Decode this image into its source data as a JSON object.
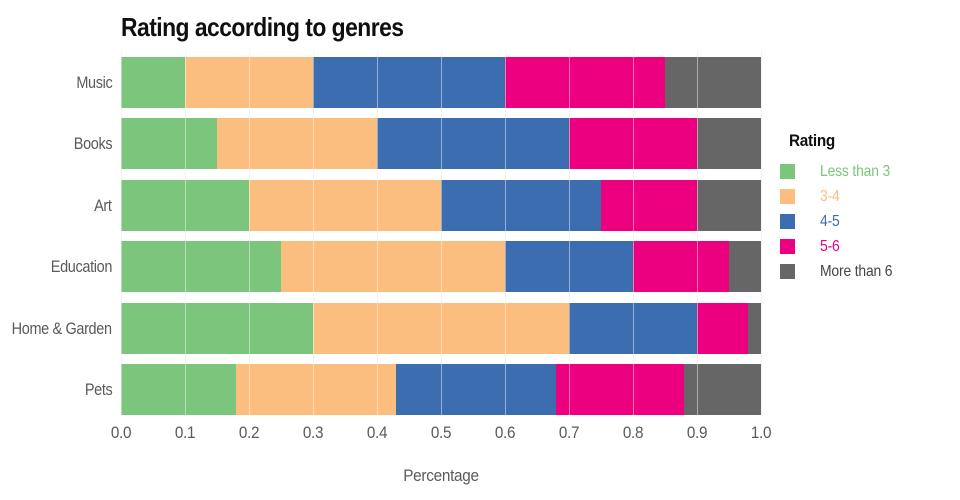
{
  "title": "Rating according to genres",
  "xlabel": "Percentage",
  "legend": {
    "title": "Rating",
    "items": [
      {
        "label": "Less than 3",
        "color": "#7cc57d",
        "label_color": "#7cc57d"
      },
      {
        "label": "3-4",
        "color": "#fcbe7e",
        "label_color": "#fcbe7e"
      },
      {
        "label": "4-5",
        "color": "#3c6db0",
        "label_color": "#3c6db0"
      },
      {
        "label": "5-6",
        "color": "#ec0080",
        "label_color": "#ec0080"
      },
      {
        "label": "More than 6",
        "color": "#666666",
        "label_color": "#454545"
      }
    ]
  },
  "chart_data": {
    "type": "bar",
    "orientation": "horizontal",
    "stacked": true,
    "title": "Rating according to genres",
    "xlabel": "Percentage",
    "ylabel": "",
    "xlim": [
      0,
      1
    ],
    "grid": true,
    "legend_position": "right",
    "categories": [
      "Music",
      "Books",
      "Art",
      "Education",
      "Home & Garden",
      "Pets"
    ],
    "series": [
      {
        "name": "Less than 3",
        "color": "#7cc57d",
        "values": [
          0.1,
          0.15,
          0.2,
          0.25,
          0.3,
          0.18
        ]
      },
      {
        "name": "3-4",
        "color": "#fcbe7e",
        "values": [
          0.2,
          0.25,
          0.3,
          0.35,
          0.4,
          0.25
        ]
      },
      {
        "name": "4-5",
        "color": "#3c6db0",
        "values": [
          0.3,
          0.3,
          0.25,
          0.2,
          0.2,
          0.25
        ]
      },
      {
        "name": "5-6",
        "color": "#ec0080",
        "values": [
          0.25,
          0.2,
          0.15,
          0.15,
          0.08,
          0.2
        ]
      },
      {
        "name": "More than 6",
        "color": "#666666",
        "values": [
          0.15,
          0.1,
          0.1,
          0.05,
          0.02,
          0.12
        ]
      }
    ],
    "xticks": [
      "0.0",
      "0.1",
      "0.2",
      "0.3",
      "0.4",
      "0.5",
      "0.6",
      "0.7",
      "0.8",
      "0.9",
      "1.0"
    ]
  }
}
